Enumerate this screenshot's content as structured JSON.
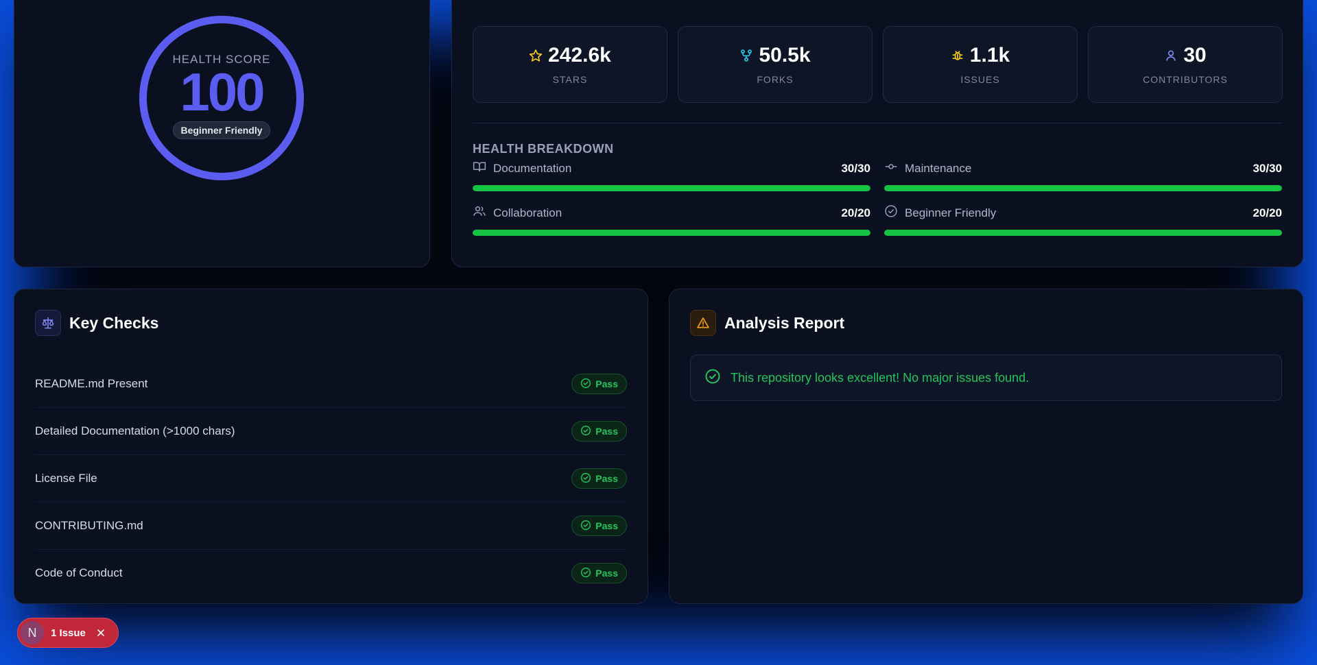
{
  "health": {
    "label": "HEALTH SCORE",
    "score": "100",
    "badge": "Beginner Friendly"
  },
  "stats": [
    {
      "icon": "star-icon",
      "value": "242.6k",
      "label": "STARS"
    },
    {
      "icon": "fork-icon",
      "value": "50.5k",
      "label": "FORKS"
    },
    {
      "icon": "bug-icon",
      "value": "1.1k",
      "label": "ISSUES"
    },
    {
      "icon": "user-icon",
      "value": "30",
      "label": "CONTRIBUTORS"
    }
  ],
  "breakdown": {
    "title": "HEALTH BREAKDOWN",
    "items": [
      {
        "icon": "book-icon",
        "name": "Documentation",
        "score": "30/30",
        "fill": 1.0
      },
      {
        "icon": "commit-icon",
        "name": "Maintenance",
        "score": "30/30",
        "fill": 1.0
      },
      {
        "icon": "users-icon",
        "name": "Collaboration",
        "score": "20/20",
        "fill": 1.0
      },
      {
        "icon": "check-circle-icon",
        "name": "Beginner Friendly",
        "score": "20/20",
        "fill": 1.0
      }
    ]
  },
  "checks": {
    "title": "Key Checks",
    "items": [
      {
        "name": "README.md Present",
        "status": "Pass"
      },
      {
        "name": "Detailed Documentation (>1000 chars)",
        "status": "Pass"
      },
      {
        "name": "License File",
        "status": "Pass"
      },
      {
        "name": "CONTRIBUTING.md",
        "status": "Pass"
      },
      {
        "name": "Code of Conduct",
        "status": "Pass"
      }
    ]
  },
  "report": {
    "title": "Analysis Report",
    "message": "This repository looks excellent! No major issues found."
  },
  "issue_pill": {
    "avatar": "N",
    "label": "1 Issue"
  },
  "colors": {
    "accent": "#5b5cf0",
    "success": "#16c444",
    "warning": "#f59e0b",
    "danger": "#c0283a"
  }
}
